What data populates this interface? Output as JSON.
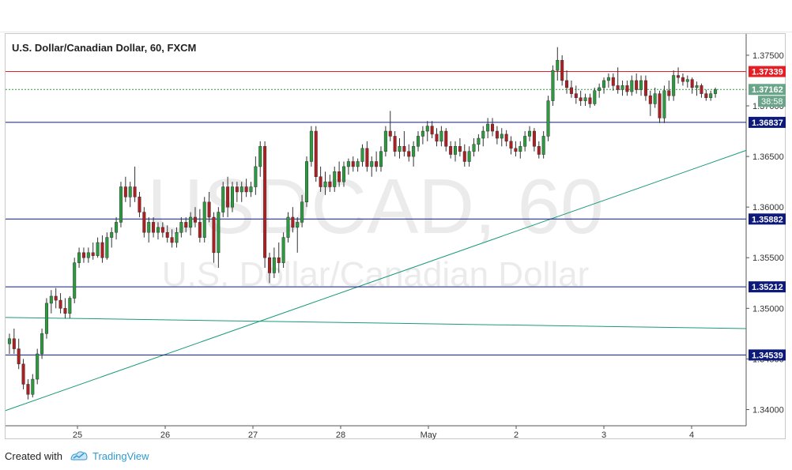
{
  "chart_data": {
    "type": "candlestick",
    "title": "U.S. Dollar/Canadian Dollar, 60, FXCM",
    "watermark": [
      "USDCAD, 60",
      "U.S. Dollar/Canadian Dollar"
    ],
    "x_ticks": [
      "25",
      "26",
      "27",
      "28",
      "May",
      "2",
      "3",
      "4"
    ],
    "y_ticks": [
      "1.37500",
      "1.37000",
      "1.36500",
      "1.36000",
      "1.35500",
      "1.35000",
      "1.34500",
      "1.34000"
    ],
    "ylim": [
      1.3384,
      1.3771
    ],
    "current_price": "1.37162",
    "countdown": "38:58",
    "horizontal_levels": [
      {
        "label": "1.37339",
        "value": 1.37339,
        "color": "#e31e24",
        "style": "solid"
      },
      {
        "label": "1.36837",
        "value": 1.36837,
        "color": "#0d1a7a",
        "style": "solid"
      },
      {
        "label": "1.35882",
        "value": 1.35882,
        "color": "#0d1a7a",
        "style": "solid"
      },
      {
        "label": "1.35212",
        "value": 1.35212,
        "color": "#0d1a7a",
        "style": "solid"
      },
      {
        "label": "1.34539",
        "value": 1.34539,
        "color": "#0d1a7a",
        "style": "solid"
      }
    ],
    "trend_lines": [
      {
        "from": [
          0,
          1.3399
        ],
        "to": [
          1,
          1.3656
        ],
        "color": "#1a9a7a"
      },
      {
        "from": [
          0,
          1.3491
        ],
        "to": [
          1,
          1.348
        ],
        "color": "#1a9a7a"
      }
    ],
    "candle_colors": {
      "up": "#2a9c3e",
      "down": "#b01e22"
    },
    "candles": [
      {
        "o": 1.3465,
        "h": 1.3475,
        "l": 1.3455,
        "c": 1.347
      },
      {
        "o": 1.347,
        "h": 1.348,
        "l": 1.3455,
        "c": 1.346
      },
      {
        "o": 1.346,
        "h": 1.347,
        "l": 1.344,
        "c": 1.3445
      },
      {
        "o": 1.3445,
        "h": 1.345,
        "l": 1.342,
        "c": 1.3425
      },
      {
        "o": 1.3425,
        "h": 1.343,
        "l": 1.341,
        "c": 1.3415
      },
      {
        "o": 1.3415,
        "h": 1.3435,
        "l": 1.3412,
        "c": 1.343
      },
      {
        "o": 1.343,
        "h": 1.346,
        "l": 1.3425,
        "c": 1.3455
      },
      {
        "o": 1.3455,
        "h": 1.348,
        "l": 1.345,
        "c": 1.3475
      },
      {
        "o": 1.3475,
        "h": 1.351,
        "l": 1.347,
        "c": 1.3505
      },
      {
        "o": 1.3505,
        "h": 1.3518,
        "l": 1.3495,
        "c": 1.3512
      },
      {
        "o": 1.3512,
        "h": 1.352,
        "l": 1.35,
        "c": 1.3508
      },
      {
        "o": 1.3508,
        "h": 1.3515,
        "l": 1.3495,
        "c": 1.35
      },
      {
        "o": 1.35,
        "h": 1.351,
        "l": 1.349,
        "c": 1.3495
      },
      {
        "o": 1.3495,
        "h": 1.3512,
        "l": 1.349,
        "c": 1.351
      },
      {
        "o": 1.351,
        "h": 1.355,
        "l": 1.3505,
        "c": 1.3545
      },
      {
        "o": 1.3545,
        "h": 1.356,
        "l": 1.354,
        "c": 1.3555
      },
      {
        "o": 1.3555,
        "h": 1.356,
        "l": 1.3545,
        "c": 1.355
      },
      {
        "o": 1.355,
        "h": 1.356,
        "l": 1.3545,
        "c": 1.3555
      },
      {
        "o": 1.3555,
        "h": 1.3565,
        "l": 1.3548,
        "c": 1.3552
      },
      {
        "o": 1.3552,
        "h": 1.357,
        "l": 1.355,
        "c": 1.3565
      },
      {
        "o": 1.3565,
        "h": 1.3572,
        "l": 1.3545,
        "c": 1.355
      },
      {
        "o": 1.355,
        "h": 1.3575,
        "l": 1.3548,
        "c": 1.357
      },
      {
        "o": 1.357,
        "h": 1.358,
        "l": 1.356,
        "c": 1.3575
      },
      {
        "o": 1.3575,
        "h": 1.359,
        "l": 1.3568,
        "c": 1.3585
      },
      {
        "o": 1.3585,
        "h": 1.3625,
        "l": 1.358,
        "c": 1.362
      },
      {
        "o": 1.362,
        "h": 1.363,
        "l": 1.3605,
        "c": 1.361
      },
      {
        "o": 1.361,
        "h": 1.3625,
        "l": 1.36,
        "c": 1.362
      },
      {
        "o": 1.362,
        "h": 1.364,
        "l": 1.3605,
        "c": 1.361
      },
      {
        "o": 1.361,
        "h": 1.3615,
        "l": 1.359,
        "c": 1.3595
      },
      {
        "o": 1.3595,
        "h": 1.36,
        "l": 1.357,
        "c": 1.3575
      },
      {
        "o": 1.3575,
        "h": 1.359,
        "l": 1.3565,
        "c": 1.3585
      },
      {
        "o": 1.3585,
        "h": 1.359,
        "l": 1.357,
        "c": 1.3575
      },
      {
        "o": 1.3575,
        "h": 1.3585,
        "l": 1.3568,
        "c": 1.358
      },
      {
        "o": 1.358,
        "h": 1.3585,
        "l": 1.357,
        "c": 1.3575
      },
      {
        "o": 1.3575,
        "h": 1.3582,
        "l": 1.3565,
        "c": 1.357
      },
      {
        "o": 1.357,
        "h": 1.3578,
        "l": 1.356,
        "c": 1.3565
      },
      {
        "o": 1.3565,
        "h": 1.358,
        "l": 1.356,
        "c": 1.3575
      },
      {
        "o": 1.3575,
        "h": 1.359,
        "l": 1.357,
        "c": 1.3585
      },
      {
        "o": 1.3585,
        "h": 1.359,
        "l": 1.3575,
        "c": 1.358
      },
      {
        "o": 1.358,
        "h": 1.3595,
        "l": 1.3572,
        "c": 1.359
      },
      {
        "o": 1.359,
        "h": 1.36,
        "l": 1.358,
        "c": 1.3585
      },
      {
        "o": 1.3585,
        "h": 1.3598,
        "l": 1.3565,
        "c": 1.357
      },
      {
        "o": 1.357,
        "h": 1.361,
        "l": 1.3565,
        "c": 1.3605
      },
      {
        "o": 1.3605,
        "h": 1.3615,
        "l": 1.3585,
        "c": 1.359
      },
      {
        "o": 1.359,
        "h": 1.3595,
        "l": 1.3545,
        "c": 1.3555
      },
      {
        "o": 1.3555,
        "h": 1.36,
        "l": 1.354,
        "c": 1.3595
      },
      {
        "o": 1.3595,
        "h": 1.3625,
        "l": 1.359,
        "c": 1.362
      },
      {
        "o": 1.362,
        "h": 1.363,
        "l": 1.359,
        "c": 1.36
      },
      {
        "o": 1.36,
        "h": 1.3625,
        "l": 1.3595,
        "c": 1.362
      },
      {
        "o": 1.362,
        "h": 1.3625,
        "l": 1.3605,
        "c": 1.3615
      },
      {
        "o": 1.3615,
        "h": 1.3625,
        "l": 1.3605,
        "c": 1.362
      },
      {
        "o": 1.362,
        "h": 1.3628,
        "l": 1.361,
        "c": 1.3615
      },
      {
        "o": 1.3615,
        "h": 1.3625,
        "l": 1.361,
        "c": 1.362
      },
      {
        "o": 1.362,
        "h": 1.365,
        "l": 1.3612,
        "c": 1.364
      },
      {
        "o": 1.364,
        "h": 1.3665,
        "l": 1.363,
        "c": 1.366
      },
      {
        "o": 1.366,
        "h": 1.3665,
        "l": 1.354,
        "c": 1.355
      },
      {
        "o": 1.355,
        "h": 1.3555,
        "l": 1.3525,
        "c": 1.3535
      },
      {
        "o": 1.3535,
        "h": 1.356,
        "l": 1.353,
        "c": 1.355
      },
      {
        "o": 1.355,
        "h": 1.3565,
        "l": 1.3535,
        "c": 1.3545
      },
      {
        "o": 1.3545,
        "h": 1.3575,
        "l": 1.354,
        "c": 1.357
      },
      {
        "o": 1.357,
        "h": 1.3595,
        "l": 1.3565,
        "c": 1.359
      },
      {
        "o": 1.359,
        "h": 1.36,
        "l": 1.3575,
        "c": 1.358
      },
      {
        "o": 1.358,
        "h": 1.359,
        "l": 1.3555,
        "c": 1.3585
      },
      {
        "o": 1.3585,
        "h": 1.3612,
        "l": 1.358,
        "c": 1.3605
      },
      {
        "o": 1.3605,
        "h": 1.365,
        "l": 1.36,
        "c": 1.3645
      },
      {
        "o": 1.3645,
        "h": 1.368,
        "l": 1.364,
        "c": 1.3675
      },
      {
        "o": 1.3675,
        "h": 1.368,
        "l": 1.3625,
        "c": 1.363
      },
      {
        "o": 1.363,
        "h": 1.364,
        "l": 1.3615,
        "c": 1.362
      },
      {
        "o": 1.362,
        "h": 1.3635,
        "l": 1.3612,
        "c": 1.3625
      },
      {
        "o": 1.3625,
        "h": 1.3632,
        "l": 1.3615,
        "c": 1.362
      },
      {
        "o": 1.362,
        "h": 1.364,
        "l": 1.3615,
        "c": 1.3635
      },
      {
        "o": 1.3635,
        "h": 1.3645,
        "l": 1.362,
        "c": 1.3625
      },
      {
        "o": 1.3625,
        "h": 1.3645,
        "l": 1.362,
        "c": 1.364
      },
      {
        "o": 1.364,
        "h": 1.3648,
        "l": 1.3632,
        "c": 1.3645
      },
      {
        "o": 1.3645,
        "h": 1.365,
        "l": 1.3635,
        "c": 1.364
      },
      {
        "o": 1.364,
        "h": 1.3648,
        "l": 1.3635,
        "c": 1.3645
      },
      {
        "o": 1.3645,
        "h": 1.3662,
        "l": 1.364,
        "c": 1.3658
      },
      {
        "o": 1.3658,
        "h": 1.3665,
        "l": 1.3635,
        "c": 1.364
      },
      {
        "o": 1.364,
        "h": 1.365,
        "l": 1.363,
        "c": 1.3645
      },
      {
        "o": 1.3645,
        "h": 1.3655,
        "l": 1.3635,
        "c": 1.364
      },
      {
        "o": 1.364,
        "h": 1.366,
        "l": 1.3635,
        "c": 1.3655
      },
      {
        "o": 1.3655,
        "h": 1.368,
        "l": 1.365,
        "c": 1.3675
      },
      {
        "o": 1.3675,
        "h": 1.3695,
        "l": 1.3665,
        "c": 1.367
      },
      {
        "o": 1.367,
        "h": 1.3675,
        "l": 1.365,
        "c": 1.3655
      },
      {
        "o": 1.3655,
        "h": 1.3668,
        "l": 1.3648,
        "c": 1.366
      },
      {
        "o": 1.366,
        "h": 1.3675,
        "l": 1.365,
        "c": 1.3655
      },
      {
        "o": 1.3655,
        "h": 1.3662,
        "l": 1.3645,
        "c": 1.365
      },
      {
        "o": 1.365,
        "h": 1.3665,
        "l": 1.364,
        "c": 1.366
      },
      {
        "o": 1.366,
        "h": 1.3675,
        "l": 1.3655,
        "c": 1.367
      },
      {
        "o": 1.367,
        "h": 1.368,
        "l": 1.3662,
        "c": 1.3675
      },
      {
        "o": 1.3675,
        "h": 1.3685,
        "l": 1.3665,
        "c": 1.368
      },
      {
        "o": 1.368,
        "h": 1.3685,
        "l": 1.3668,
        "c": 1.3672
      },
      {
        "o": 1.3672,
        "h": 1.3678,
        "l": 1.366,
        "c": 1.3665
      },
      {
        "o": 1.3665,
        "h": 1.368,
        "l": 1.366,
        "c": 1.3675
      },
      {
        "o": 1.3675,
        "h": 1.3678,
        "l": 1.3655,
        "c": 1.366
      },
      {
        "o": 1.366,
        "h": 1.3665,
        "l": 1.3648,
        "c": 1.3652
      },
      {
        "o": 1.3652,
        "h": 1.3665,
        "l": 1.3645,
        "c": 1.366
      },
      {
        "o": 1.366,
        "h": 1.3668,
        "l": 1.365,
        "c": 1.3655
      },
      {
        "o": 1.3655,
        "h": 1.3662,
        "l": 1.364,
        "c": 1.3645
      },
      {
        "o": 1.3645,
        "h": 1.366,
        "l": 1.364,
        "c": 1.3655
      },
      {
        "o": 1.3655,
        "h": 1.3668,
        "l": 1.365,
        "c": 1.3662
      },
      {
        "o": 1.3662,
        "h": 1.3672,
        "l": 1.3655,
        "c": 1.3668
      },
      {
        "o": 1.3668,
        "h": 1.368,
        "l": 1.366,
        "c": 1.3675
      },
      {
        "o": 1.3675,
        "h": 1.3688,
        "l": 1.3668,
        "c": 1.3682
      },
      {
        "o": 1.3682,
        "h": 1.3688,
        "l": 1.367,
        "c": 1.3675
      },
      {
        "o": 1.3675,
        "h": 1.368,
        "l": 1.3662,
        "c": 1.3668
      },
      {
        "o": 1.3668,
        "h": 1.3678,
        "l": 1.366,
        "c": 1.3672
      },
      {
        "o": 1.3672,
        "h": 1.3676,
        "l": 1.366,
        "c": 1.3665
      },
      {
        "o": 1.3665,
        "h": 1.367,
        "l": 1.3652,
        "c": 1.3658
      },
      {
        "o": 1.3658,
        "h": 1.3665,
        "l": 1.365,
        "c": 1.3655
      },
      {
        "o": 1.3655,
        "h": 1.3665,
        "l": 1.3648,
        "c": 1.366
      },
      {
        "o": 1.366,
        "h": 1.3675,
        "l": 1.3655,
        "c": 1.367
      },
      {
        "o": 1.367,
        "h": 1.368,
        "l": 1.3665,
        "c": 1.3675
      },
      {
        "o": 1.3675,
        "h": 1.3678,
        "l": 1.3655,
        "c": 1.366
      },
      {
        "o": 1.366,
        "h": 1.3665,
        "l": 1.3648,
        "c": 1.3652
      },
      {
        "o": 1.3652,
        "h": 1.3675,
        "l": 1.3648,
        "c": 1.367
      },
      {
        "o": 1.367,
        "h": 1.371,
        "l": 1.3665,
        "c": 1.3705
      },
      {
        "o": 1.3705,
        "h": 1.374,
        "l": 1.37,
        "c": 1.3735
      },
      {
        "o": 1.3735,
        "h": 1.3758,
        "l": 1.3725,
        "c": 1.3745
      },
      {
        "o": 1.3745,
        "h": 1.375,
        "l": 1.372,
        "c": 1.3725
      },
      {
        "o": 1.3725,
        "h": 1.3735,
        "l": 1.3712,
        "c": 1.3718
      },
      {
        "o": 1.3718,
        "h": 1.3725,
        "l": 1.3708,
        "c": 1.3712
      },
      {
        "o": 1.3712,
        "h": 1.372,
        "l": 1.3702,
        "c": 1.3708
      },
      {
        "o": 1.3708,
        "h": 1.3715,
        "l": 1.37,
        "c": 1.3705
      },
      {
        "o": 1.3705,
        "h": 1.3712,
        "l": 1.37,
        "c": 1.3708
      },
      {
        "o": 1.3708,
        "h": 1.3712,
        "l": 1.3698,
        "c": 1.3702
      },
      {
        "o": 1.3702,
        "h": 1.3718,
        "l": 1.37,
        "c": 1.3715
      },
      {
        "o": 1.3715,
        "h": 1.3722,
        "l": 1.3708,
        "c": 1.3718
      },
      {
        "o": 1.3718,
        "h": 1.3728,
        "l": 1.3712,
        "c": 1.3725
      },
      {
        "o": 1.3725,
        "h": 1.3732,
        "l": 1.3718,
        "c": 1.3728
      },
      {
        "o": 1.3728,
        "h": 1.3732,
        "l": 1.3715,
        "c": 1.372
      },
      {
        "o": 1.372,
        "h": 1.3738,
        "l": 1.3712,
        "c": 1.3716
      },
      {
        "o": 1.3716,
        "h": 1.3725,
        "l": 1.371,
        "c": 1.372
      },
      {
        "o": 1.372,
        "h": 1.3725,
        "l": 1.371,
        "c": 1.3714
      },
      {
        "o": 1.3714,
        "h": 1.373,
        "l": 1.371,
        "c": 1.3725
      },
      {
        "o": 1.3725,
        "h": 1.3732,
        "l": 1.3712,
        "c": 1.3716
      },
      {
        "o": 1.3716,
        "h": 1.373,
        "l": 1.371,
        "c": 1.3725
      },
      {
        "o": 1.3725,
        "h": 1.373,
        "l": 1.3705,
        "c": 1.371
      },
      {
        "o": 1.371,
        "h": 1.3715,
        "l": 1.369,
        "c": 1.3702
      },
      {
        "o": 1.3702,
        "h": 1.3718,
        "l": 1.3698,
        "c": 1.3712
      },
      {
        "o": 1.3712,
        "h": 1.3715,
        "l": 1.3683,
        "c": 1.3688
      },
      {
        "o": 1.3688,
        "h": 1.372,
        "l": 1.3683,
        "c": 1.3715
      },
      {
        "o": 1.3715,
        "h": 1.3725,
        "l": 1.3705,
        "c": 1.371
      },
      {
        "o": 1.371,
        "h": 1.3735,
        "l": 1.3705,
        "c": 1.373
      },
      {
        "o": 1.373,
        "h": 1.3738,
        "l": 1.3722,
        "c": 1.3728
      },
      {
        "o": 1.3728,
        "h": 1.3732,
        "l": 1.372,
        "c": 1.3724
      },
      {
        "o": 1.3724,
        "h": 1.373,
        "l": 1.3718,
        "c": 1.3726
      },
      {
        "o": 1.3726,
        "h": 1.3728,
        "l": 1.3712,
        "c": 1.3718
      },
      {
        "o": 1.3718,
        "h": 1.3724,
        "l": 1.371,
        "c": 1.372
      },
      {
        "o": 1.372,
        "h": 1.3722,
        "l": 1.3708,
        "c": 1.3712
      },
      {
        "o": 1.3712,
        "h": 1.3716,
        "l": 1.3705,
        "c": 1.3708
      },
      {
        "o": 1.3708,
        "h": 1.3715,
        "l": 1.3705,
        "c": 1.3712
      },
      {
        "o": 1.3712,
        "h": 1.3718,
        "l": 1.3708,
        "c": 1.3716
      }
    ]
  },
  "footer": {
    "created_with": "Created with",
    "brand": "TradingView"
  }
}
